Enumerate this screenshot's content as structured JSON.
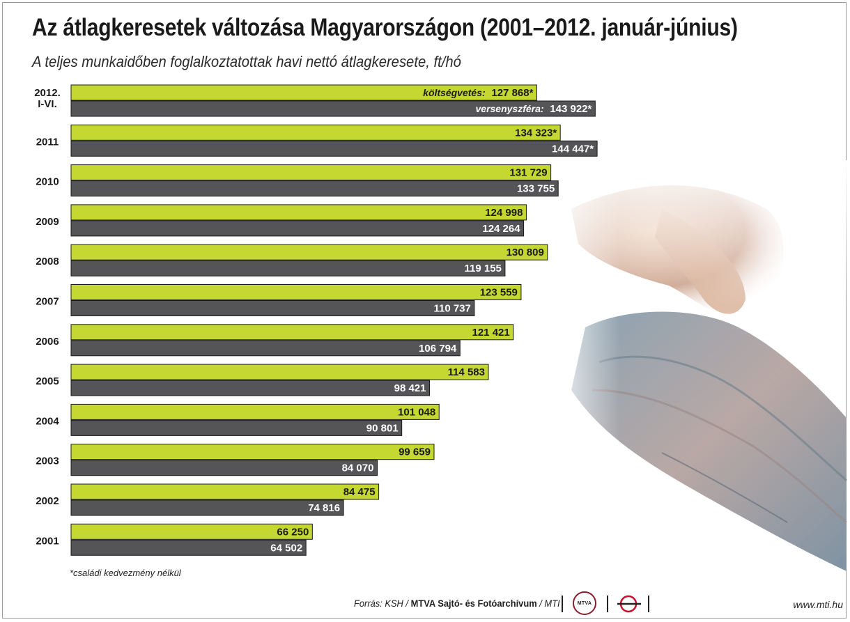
{
  "title": "Az átlagkeresetek változása Magyarországon (2001–2012. január-június)",
  "subtitle": "A teljes munkaidőben foglalkoztatottak havi nettó átlagkeresete, ft/hó",
  "footnote": "*családi kedvezmény nélkül",
  "source": {
    "prefix": "Forrás: KSH / ",
    "bold": "MTVA Sajtó- és Fotóarchívum",
    "suffix": " / MTI"
  },
  "logo_mtva_text": "MTVA",
  "website": "www.mti.hu",
  "colors": {
    "koltsegvetes": "#c4d831",
    "versenyszfera": "#555557",
    "text_dark": "#1a1a1a"
  },
  "chart_data": {
    "type": "bar",
    "orientation": "horizontal",
    "categories": [
      "2012.\nI-VI.",
      "2011",
      "2010",
      "2009",
      "2008",
      "2007",
      "2006",
      "2005",
      "2004",
      "2003",
      "2002",
      "2001"
    ],
    "series": [
      {
        "name": "költségvetés:",
        "values": [
          127868,
          134323,
          131729,
          124998,
          130809,
          123559,
          121421,
          114583,
          101048,
          99659,
          84475,
          66250
        ],
        "labels": [
          "127 868*",
          "134 323*",
          "131 729",
          "124 998",
          "130 809",
          "123 559",
          "121 421",
          "114 583",
          "101 048",
          "99 659",
          "84 475",
          "66 250"
        ]
      },
      {
        "name": "versenyszféra:",
        "values": [
          143922,
          144447,
          133755,
          124264,
          119155,
          110737,
          106794,
          98421,
          90801,
          84070,
          74816,
          64502
        ],
        "labels": [
          "143 922*",
          "144 447*",
          "133 755",
          "124 264",
          "119 155",
          "110 737",
          "106 794",
          "98 421",
          "90 801",
          "84 070",
          "74 816",
          "64 502"
        ]
      }
    ],
    "xlim": [
      0,
      145000
    ],
    "grid": false,
    "legend": "inline-first-row"
  }
}
